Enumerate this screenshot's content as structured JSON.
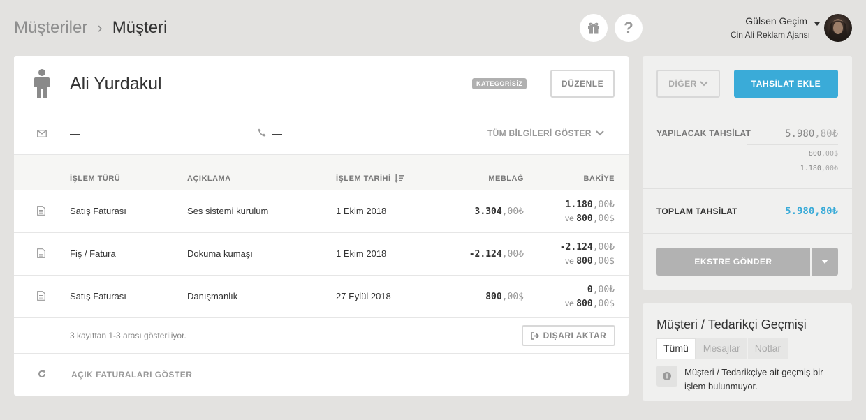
{
  "breadcrumb": {
    "root": "Müşteriler",
    "separator": "›",
    "current": "Müşteri"
  },
  "header_icons": [
    "gift-icon",
    "help-icon"
  ],
  "help_label": "?",
  "user": {
    "name": "Gülsen Geçim",
    "company": "Cin Ali Reklam Ajansı"
  },
  "customer": {
    "name": "Ali Yurdakul",
    "category": "KATEGORİSİZ",
    "edit_label": "DÜZENLE",
    "email": "—",
    "phone": "—",
    "show_all_label": "TÜM BİLGİLERİ GÖSTER"
  },
  "table": {
    "headers": {
      "type": "İŞLEM TÜRÜ",
      "desc": "AÇIKLAMA",
      "date": "İŞLEM TARİHİ",
      "amount": "MEBLAĞ",
      "balance": "BAKİYE"
    },
    "rows": [
      {
        "type": "Satış Faturası",
        "desc": "Ses sistemi kurulum",
        "date": "1 Ekim 2018",
        "amount_int": "3.304",
        "amount_dec": ",00₺",
        "bal_tl_int": "1.180",
        "bal_tl_dec": ",00₺",
        "bal_and": "ve",
        "bal_usd_int": "800",
        "bal_usd_dec": ",00$"
      },
      {
        "type": "Fiş / Fatura",
        "desc": "Dokuma kumaşı",
        "date": "1 Ekim 2018",
        "amount_int": "-2.124",
        "amount_dec": ",00₺",
        "bal_tl_int": "-2.124",
        "bal_tl_dec": ",00₺",
        "bal_and": "ve",
        "bal_usd_int": "800",
        "bal_usd_dec": ",00$"
      },
      {
        "type": "Satış Faturası",
        "desc": "Danışmanlık",
        "date": "27 Eylül 2018",
        "amount_int": "800",
        "amount_dec": ",00$",
        "bal_tl_int": "0",
        "bal_tl_dec": ",00₺",
        "bal_and": "ve",
        "bal_usd_int": "800",
        "bal_usd_dec": ",00$"
      }
    ],
    "records_info": "3 kayıttan 1-3 arası gösteriliyor.",
    "export_label": "DIŞARI AKTAR",
    "open_invoices_label": "AÇIK FATURALARI GÖSTER"
  },
  "side": {
    "other_label": "DİĞER",
    "add_collection_label": "TAHSİLAT EKLE",
    "to_collect_label": "YAPILACAK TAHSİLAT",
    "to_collect_int": "5.980",
    "to_collect_dec": ",80₺",
    "sub1_int": "800",
    "sub1_dec": ",00$",
    "sub2_int": "1.180",
    "sub2_dec": ",00₺",
    "total_label": "TOPLAM TAHSİLAT",
    "total_int": "5.980",
    "total_dec": ",80₺",
    "statement_label": "EKSTRE GÖNDER"
  },
  "history": {
    "title": "Müşteri / Tedarikçi Geçmişi",
    "tabs": [
      "Tümü",
      "Mesajlar",
      "Notlar"
    ],
    "empty_text": "Müşteri / Tedarikçiye ait geçmiş bir işlem bulunmuyor."
  },
  "colors": {
    "accent": "#3aabd8",
    "background": "#e3e2e0"
  }
}
